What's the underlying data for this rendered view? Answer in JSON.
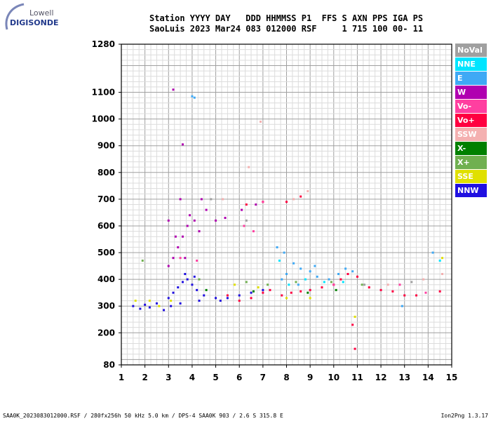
{
  "logo": {
    "line1": "Lowell",
    "line2": "DIGISONDE"
  },
  "header": {
    "line1": "Station YYYY DAY   DDD HHMMSS P1  FFS S AXN PPS IGA PS",
    "line2": "SaoLuis 2023 Mar24 083 012000 RSF     1 715 100 00- 11"
  },
  "legend": [
    {
      "label": "NoVal",
      "color": "#a0a0a0"
    },
    {
      "label": "NNE",
      "color": "#00e5ff"
    },
    {
      "label": "E",
      "color": "#3fa9f5"
    },
    {
      "label": "W",
      "color": "#b000b0"
    },
    {
      "label": "Vo-",
      "color": "#ff3fa0"
    },
    {
      "label": "Vo+",
      "color": "#ff0040"
    },
    {
      "label": "SSW",
      "color": "#f4b0b0"
    },
    {
      "label": "X-",
      "color": "#008000"
    },
    {
      "label": "X+",
      "color": "#70b050"
    },
    {
      "label": "SSE",
      "color": "#e0e000"
    },
    {
      "label": "NNW",
      "color": "#2010e0"
    }
  ],
  "footer": {
    "left": "SAA0K_2023083012000.RSF / 280fx256h 50 kHz 5.0 km / DPS-4 SAA0K 903 / 2.6 S 315.8 E",
    "right": "Ion2Png 1.3.17"
  },
  "chart_data": {
    "type": "scatter",
    "title": "",
    "xlabel": "",
    "ylabel": "",
    "xlim": [
      1,
      15
    ],
    "ylim": [
      80,
      1280
    ],
    "xticks": [
      1,
      2,
      3,
      4,
      5,
      6,
      7,
      8,
      9,
      10,
      11,
      12,
      13,
      14,
      15
    ],
    "yticks": [
      80,
      200,
      300,
      400,
      500,
      600,
      700,
      800,
      900,
      1000,
      1100,
      1280
    ],
    "grid": true,
    "series": [
      {
        "name": "NNW",
        "points": [
          [
            1.5,
            300
          ],
          [
            2.0,
            305
          ],
          [
            2.5,
            310
          ],
          [
            3.0,
            330
          ],
          [
            3.2,
            350
          ],
          [
            3.4,
            370
          ],
          [
            3.6,
            390
          ],
          [
            3.8,
            400
          ],
          [
            4.0,
            380
          ],
          [
            4.2,
            360
          ],
          [
            4.5,
            340
          ],
          [
            5.0,
            330
          ],
          [
            5.5,
            330
          ],
          [
            6.0,
            340
          ],
          [
            6.5,
            350
          ],
          [
            7.0,
            360
          ],
          [
            3.1,
            300
          ],
          [
            3.5,
            310
          ],
          [
            4.3,
            320
          ],
          [
            5.2,
            320
          ],
          [
            2.2,
            295
          ],
          [
            1.8,
            290
          ],
          [
            2.8,
            285
          ],
          [
            3.7,
            420
          ],
          [
            4.1,
            410
          ]
        ]
      },
      {
        "name": "W",
        "points": [
          [
            3.0,
            450
          ],
          [
            3.2,
            480
          ],
          [
            3.4,
            520
          ],
          [
            3.6,
            560
          ],
          [
            3.8,
            600
          ],
          [
            3.5,
            700
          ],
          [
            3.9,
            640
          ],
          [
            4.1,
            620
          ],
          [
            4.3,
            580
          ],
          [
            4.6,
            660
          ],
          [
            3.3,
            560
          ],
          [
            3.7,
            480
          ],
          [
            3.6,
            905
          ],
          [
            3.2,
            1110
          ],
          [
            5.0,
            620
          ],
          [
            5.4,
            630
          ],
          [
            6.1,
            660
          ],
          [
            6.7,
            680
          ],
          [
            4.4,
            700
          ],
          [
            3.0,
            620
          ]
        ]
      },
      {
        "name": "Vo+",
        "points": [
          [
            5.5,
            340
          ],
          [
            6.0,
            320
          ],
          [
            6.5,
            330
          ],
          [
            7.0,
            350
          ],
          [
            7.3,
            360
          ],
          [
            7.8,
            340
          ],
          [
            8.2,
            350
          ],
          [
            8.6,
            355
          ],
          [
            9.0,
            360
          ],
          [
            9.5,
            370
          ],
          [
            10.0,
            380
          ],
          [
            10.3,
            400
          ],
          [
            10.6,
            420
          ],
          [
            11.0,
            410
          ],
          [
            11.5,
            370
          ],
          [
            12.0,
            360
          ],
          [
            12.5,
            355
          ],
          [
            13.0,
            340
          ],
          [
            13.5,
            340
          ],
          [
            14.5,
            355
          ],
          [
            6.3,
            680
          ],
          [
            7.0,
            690
          ],
          [
            8.0,
            690
          ],
          [
            8.6,
            710
          ],
          [
            10.9,
            140
          ],
          [
            10.8,
            230
          ]
        ]
      },
      {
        "name": "E",
        "points": [
          [
            7.8,
            400
          ],
          [
            8.0,
            420
          ],
          [
            8.3,
            460
          ],
          [
            8.6,
            440
          ],
          [
            9.0,
            430
          ],
          [
            9.3,
            410
          ],
          [
            9.8,
            400
          ],
          [
            10.2,
            420
          ],
          [
            10.5,
            440
          ],
          [
            10.8,
            430
          ],
          [
            7.6,
            520
          ],
          [
            7.9,
            500
          ],
          [
            8.5,
            380
          ],
          [
            9.2,
            450
          ],
          [
            12.9,
            300
          ],
          [
            14.2,
            500
          ],
          [
            4.0,
            1085
          ],
          [
            4.1,
            1080
          ]
        ]
      },
      {
        "name": "NNE",
        "points": [
          [
            8.1,
            380
          ],
          [
            8.8,
            400
          ],
          [
            9.6,
            390
          ],
          [
            10.4,
            390
          ],
          [
            14.5,
            470
          ],
          [
            7.7,
            470
          ]
        ]
      },
      {
        "name": "SSE",
        "points": [
          [
            1.6,
            320
          ],
          [
            2.2,
            320
          ],
          [
            2.6,
            300
          ],
          [
            3.1,
            320
          ],
          [
            5.8,
            380
          ],
          [
            6.8,
            370
          ],
          [
            8.0,
            330
          ],
          [
            9.0,
            330
          ],
          [
            10.9,
            260
          ],
          [
            14.6,
            480
          ]
        ]
      },
      {
        "name": "X+",
        "points": [
          [
            1.9,
            470
          ],
          [
            4.3,
            400
          ],
          [
            6.3,
            390
          ],
          [
            7.2,
            380
          ],
          [
            8.4,
            390
          ],
          [
            9.9,
            390
          ],
          [
            11.2,
            380
          ]
        ]
      },
      {
        "name": "X-",
        "points": [
          [
            4.6,
            360
          ],
          [
            6.6,
            355
          ],
          [
            8.9,
            350
          ],
          [
            10.1,
            360
          ]
        ]
      },
      {
        "name": "SSW",
        "points": [
          [
            5.3,
            700
          ],
          [
            6.4,
            820
          ],
          [
            6.9,
            990
          ],
          [
            8.3,
            700
          ],
          [
            8.9,
            730
          ],
          [
            12.3,
            380
          ],
          [
            13.8,
            400
          ],
          [
            14.6,
            420
          ]
        ]
      },
      {
        "name": "Vo-",
        "points": [
          [
            3.5,
            480
          ],
          [
            4.2,
            470
          ],
          [
            6.2,
            600
          ],
          [
            6.6,
            580
          ],
          [
            7.0,
            690
          ],
          [
            10.0,
            380
          ],
          [
            12.8,
            380
          ],
          [
            13.9,
            350
          ]
        ]
      },
      {
        "name": "NoVal",
        "points": [
          [
            4.8,
            700
          ],
          [
            6.3,
            620
          ],
          [
            11.3,
            380
          ],
          [
            13.3,
            390
          ]
        ]
      }
    ]
  }
}
